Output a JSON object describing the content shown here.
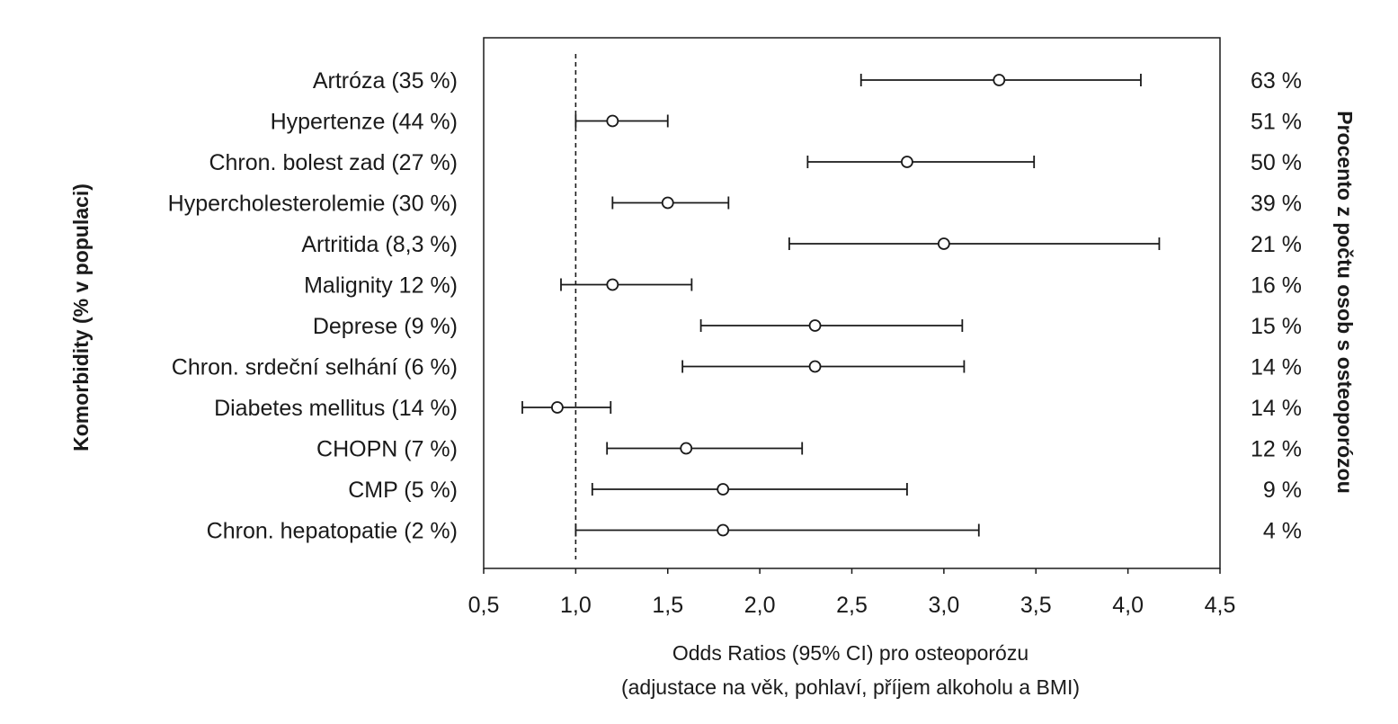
{
  "chart_data": {
    "type": "forest",
    "xlabel": "Odds Ratios (95% CI) pro osteoporózu",
    "xlabel_sub": "(adjustace na věk, pohlaví, příjem alkoholu a BMI)",
    "ylabel_left": "Komorbidity (% v populaci)",
    "ylabel_right": "Procento z počtu osob s osteoporózou",
    "xlim": [
      0.5,
      4.5
    ],
    "xticks": [
      0.5,
      1.0,
      1.5,
      2.0,
      2.5,
      3.0,
      3.5,
      4.0,
      4.5
    ],
    "xtick_labels": [
      "0,5",
      "1,0",
      "1,5",
      "2,0",
      "2,5",
      "3,0",
      "3,5",
      "4,0",
      "4,5"
    ],
    "reference_line": 1.0,
    "rows": [
      {
        "label": "Artróza (35 %)",
        "or": 3.3,
        "ci_low": 2.55,
        "ci_high": 4.07,
        "percent": "63 %"
      },
      {
        "label": "Hypertenze (44 %)",
        "or": 1.2,
        "ci_low": 1.0,
        "ci_high": 1.5,
        "percent": "51 %"
      },
      {
        "label": "Chron. bolest zad (27 %)",
        "or": 2.8,
        "ci_low": 2.26,
        "ci_high": 3.49,
        "percent": "50 %"
      },
      {
        "label": "Hypercholesterolemie (30 %)",
        "or": 1.5,
        "ci_low": 1.2,
        "ci_high": 1.83,
        "percent": "39 %"
      },
      {
        "label": "Artritida (8,3 %)",
        "or": 3.0,
        "ci_low": 2.16,
        "ci_high": 4.17,
        "percent": "21 %"
      },
      {
        "label": "Malignity 12 %)",
        "or": 1.2,
        "ci_low": 0.92,
        "ci_high": 1.63,
        "percent": "16 %"
      },
      {
        "label": "Deprese (9 %)",
        "or": 2.3,
        "ci_low": 1.68,
        "ci_high": 3.1,
        "percent": "15 %"
      },
      {
        "label": "Chron. srdeční selhání (6 %)",
        "or": 2.3,
        "ci_low": 1.58,
        "ci_high": 3.11,
        "percent": "14 %"
      },
      {
        "label": "Diabetes mellitus (14 %)",
        "or": 0.9,
        "ci_low": 0.71,
        "ci_high": 1.19,
        "percent": "14 %"
      },
      {
        "label": "CHOPN (7 %)",
        "or": 1.6,
        "ci_low": 1.17,
        "ci_high": 2.23,
        "percent": "12 %"
      },
      {
        "label": "CMP (5 %)",
        "or": 1.8,
        "ci_low": 1.09,
        "ci_high": 2.8,
        "percent": "9 %"
      },
      {
        "label": "Chron. hepatopatie (2 %)",
        "or": 1.8,
        "ci_low": 1.0,
        "ci_high": 3.19,
        "percent": "4 %"
      }
    ],
    "grid": false,
    "colors": {
      "line": "#1a1a1a",
      "marker_fill": "#ffffff",
      "frame": "#1a1a1a"
    }
  }
}
